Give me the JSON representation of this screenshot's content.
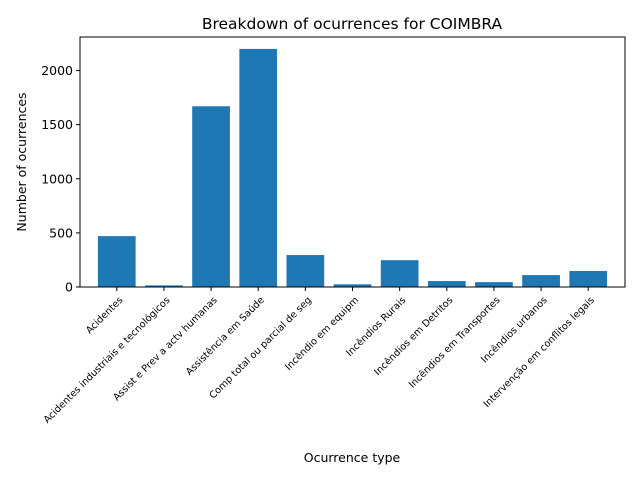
{
  "chart_data": {
    "type": "bar",
    "title": "Breakdown of ocurrences for COIMBRA",
    "xlabel": "Ocurrence type",
    "ylabel": "Number of ocurrences",
    "categories": [
      "Acidentes",
      "Acidentes industriais e tecnológicos",
      "Assist e Prev a actv humanas",
      "Assistência em Saúde",
      "Comp total ou parcial de seg",
      "Incêndio em equipm",
      "Incêndios Rurais",
      "Incêndios em Detritos",
      "Incêndios em Transportes",
      "Incêndios urbanos",
      "Intervenção em conflitos legais"
    ],
    "values": [
      470,
      15,
      1670,
      2200,
      295,
      25,
      248,
      55,
      45,
      110,
      148
    ],
    "ylim": [
      0,
      2310
    ],
    "yticks": [
      0,
      500,
      1000,
      1500,
      2000
    ],
    "bar_color": "#1f77b4",
    "grid": false,
    "legend": false
  }
}
